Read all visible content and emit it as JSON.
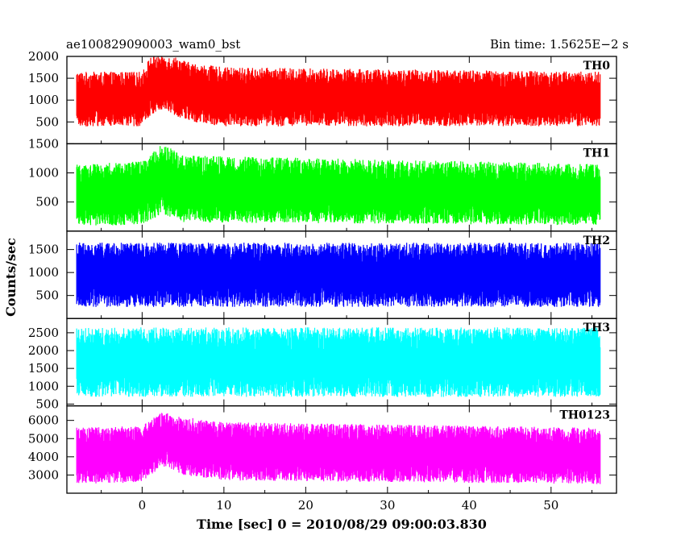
{
  "header": {
    "left": "ae100829090003_wam0_bst",
    "right": "Bin time: 1.5625E−2 s"
  },
  "chart_data": {
    "type": "line",
    "xlabel": "Time [sec] 0 = 2010/08/29 09:00:03.830",
    "ylabel": "Counts/sec",
    "xlim": [
      -9.2,
      58
    ],
    "x_ticks": [
      0,
      10,
      20,
      30,
      40,
      50
    ],
    "x_range": [
      -8,
      56
    ],
    "bin_time": 0.015625,
    "grid": false,
    "panels": [
      {
        "name": "TH0",
        "color": "#ff0000",
        "ylim": [
          0,
          2000
        ],
        "y_ticks": [
          500,
          1000,
          1500,
          2000
        ],
        "profile": [
          {
            "t": -8,
            "mean": 1000,
            "lo": 400,
            "hi": 1650
          },
          {
            "t": 0,
            "mean": 1000,
            "lo": 400,
            "hi": 1650
          },
          {
            "t": 1,
            "mean": 1300,
            "lo": 650,
            "hi": 2000
          },
          {
            "t": 2.5,
            "mean": 1450,
            "lo": 800,
            "hi": 2000
          },
          {
            "t": 4,
            "mean": 1300,
            "lo": 650,
            "hi": 2000
          },
          {
            "t": 6,
            "mean": 1150,
            "lo": 500,
            "hi": 1850
          },
          {
            "t": 10,
            "mean": 1050,
            "lo": 400,
            "hi": 1750
          },
          {
            "t": 56,
            "mean": 1000,
            "lo": 400,
            "hi": 1650
          }
        ]
      },
      {
        "name": "TH1",
        "color": "#00ff00",
        "ylim": [
          0,
          1500
        ],
        "y_ticks": [
          500,
          1000,
          1500
        ],
        "profile": [
          {
            "t": -8,
            "mean": 600,
            "lo": 100,
            "hi": 1150
          },
          {
            "t": 0,
            "mean": 650,
            "lo": 100,
            "hi": 1200
          },
          {
            "t": 2.5,
            "mean": 850,
            "lo": 300,
            "hi": 1500
          },
          {
            "t": 5,
            "mean": 700,
            "lo": 150,
            "hi": 1300
          },
          {
            "t": 56,
            "mean": 600,
            "lo": 100,
            "hi": 1150
          }
        ]
      },
      {
        "name": "TH2",
        "color": "#0000ff",
        "ylim": [
          0,
          1900
        ],
        "y_ticks": [
          500,
          1000,
          1500
        ],
        "profile": [
          {
            "t": -8,
            "mean": 950,
            "lo": 250,
            "hi": 1650
          },
          {
            "t": 56,
            "mean": 950,
            "lo": 250,
            "hi": 1650
          }
        ]
      },
      {
        "name": "TH3",
        "color": "#00ffff",
        "ylim": [
          450,
          2900
        ],
        "y_ticks": [
          500,
          1000,
          1500,
          2000,
          2500
        ],
        "profile": [
          {
            "t": -8,
            "mean": 1650,
            "lo": 700,
            "hi": 2650
          },
          {
            "t": 56,
            "mean": 1650,
            "lo": 700,
            "hi": 2650
          }
        ]
      },
      {
        "name": "TH0123",
        "color": "#ff00ff",
        "ylim": [
          2000,
          6800
        ],
        "y_ticks": [
          3000,
          4000,
          5000,
          6000
        ],
        "profile": [
          {
            "t": -8,
            "mean": 4050,
            "lo": 2500,
            "hi": 5600
          },
          {
            "t": 0,
            "mean": 4100,
            "lo": 2600,
            "hi": 5700
          },
          {
            "t": 2.5,
            "mean": 5000,
            "lo": 3500,
            "hi": 6500
          },
          {
            "t": 5,
            "mean": 4600,
            "lo": 3000,
            "hi": 6200
          },
          {
            "t": 10,
            "mean": 4300,
            "lo": 2700,
            "hi": 5900
          },
          {
            "t": 56,
            "mean": 4000,
            "lo": 2500,
            "hi": 5600
          }
        ]
      }
    ]
  }
}
